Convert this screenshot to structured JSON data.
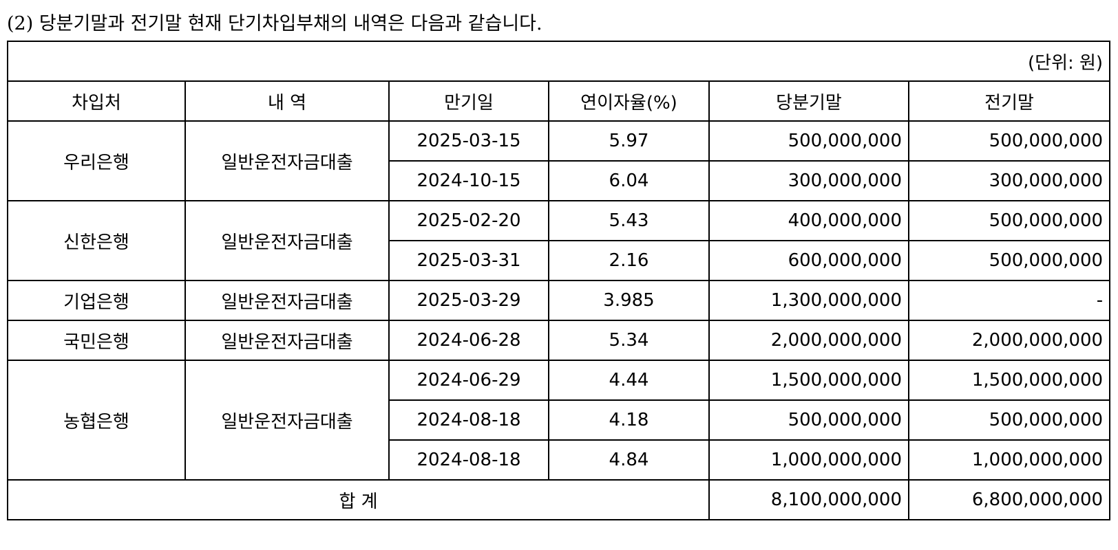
{
  "title": "(2) 당분기말과 전기말 현재 단기차입부채의 내역은 다음과 같습니다.",
  "table": {
    "unit": "(단위: 원)",
    "header": [
      "차입처",
      "내 역",
      "만기일",
      "연이자율(%)",
      "당분기말",
      "전기말"
    ],
    "groups": [
      {
        "lender": "우리은행",
        "description": "일반운전자금대출",
        "rows": [
          [
            "2025-03-15",
            "5.97",
            "500,000,000",
            "500,000,000"
          ],
          [
            "2024-10-15",
            "6.04",
            "300,000,000",
            "300,000,000"
          ]
        ]
      },
      {
        "lender": "신한은행",
        "description": "일반운전자금대출",
        "rows": [
          [
            "2025-02-20",
            "5.43",
            "400,000,000",
            "500,000,000"
          ],
          [
            "2025-03-31",
            "2.16",
            "600,000,000",
            "500,000,000"
          ]
        ]
      },
      {
        "lender": "기업은행",
        "description": "일반운전자금대출",
        "rows": [
          [
            "2025-03-29",
            "3.985",
            "1,300,000,000",
            "-"
          ]
        ]
      },
      {
        "lender": "국민은행",
        "description": "일반운전자금대출",
        "rows": [
          [
            "2024-06-28",
            "5.34",
            "2,000,000,000",
            "2,000,000,000"
          ]
        ]
      },
      {
        "lender": "농협은행",
        "description": "일반운전자금대출",
        "rows": [
          [
            "2024-06-29",
            "4.44",
            "1,500,000,000",
            "1,500,000,000"
          ],
          [
            "2024-08-18",
            "4.18",
            "500,000,000",
            "500,000,000"
          ],
          [
            "2024-08-18",
            "4.84",
            "1,000,000,000",
            "1,000,000,000"
          ]
        ]
      }
    ],
    "total": {
      "label": "합 계",
      "current": "8,100,000,000",
      "prior": "6,800,000,000"
    }
  }
}
